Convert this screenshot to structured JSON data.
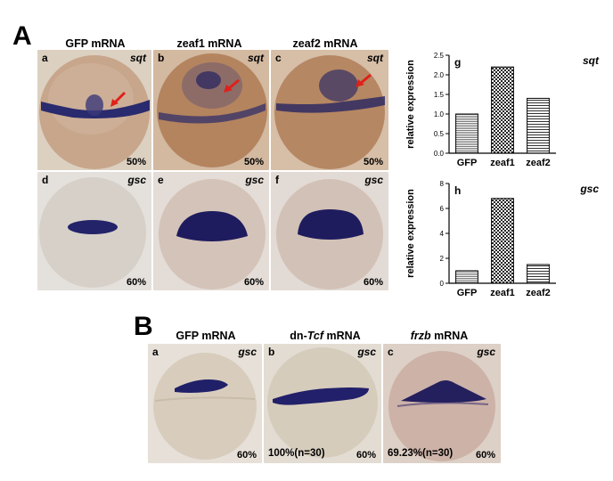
{
  "figure": {
    "panelA": {
      "letter": "A",
      "columns": [
        "GFP mRNA",
        "zeaf1 mRNA",
        "zeaf2 mRNA"
      ],
      "images": [
        {
          "label": "a",
          "gene": "sqt",
          "percent": "50%"
        },
        {
          "label": "b",
          "gene": "sqt",
          "percent": "50%"
        },
        {
          "label": "c",
          "gene": "sqt",
          "percent": "50%"
        },
        {
          "label": "d",
          "gene": "gsc",
          "percent": "60%"
        },
        {
          "label": "e",
          "gene": "gsc",
          "percent": "60%"
        },
        {
          "label": "f",
          "gene": "gsc",
          "percent": "60%"
        }
      ]
    },
    "panelB": {
      "letter": "B",
      "columns": [
        {
          "pre": "GFP mRNA",
          "italic": "",
          "post": ""
        },
        {
          "pre": "dn-",
          "italic": "Tcf",
          "post": " mRNA"
        },
        {
          "pre": "",
          "italic": "frzb",
          "post": " mRNA"
        }
      ],
      "images": [
        {
          "label": "a",
          "gene": "gsc",
          "percent": "60%",
          "note": ""
        },
        {
          "label": "b",
          "gene": "gsc",
          "percent": "60%",
          "note": "100%(n=30)"
        },
        {
          "label": "c",
          "gene": "gsc",
          "percent": "60%",
          "note": "69.23%(n=30)"
        }
      ]
    }
  },
  "chart_data": [
    {
      "type": "bar",
      "panel": "g",
      "gene": "sqt",
      "categories": [
        "GFP",
        "zeaf1",
        "zeaf2"
      ],
      "values": [
        1.0,
        2.2,
        1.4
      ],
      "ylabel": "relative expression",
      "ylim": [
        0,
        2.5
      ],
      "yticks": [
        "0.0",
        "0.5",
        "1.0",
        "1.5",
        "2.0",
        "2.5"
      ],
      "patterns": [
        "hlines-dense",
        "checker",
        "hlines"
      ]
    },
    {
      "type": "bar",
      "panel": "h",
      "gene": "gsc",
      "categories": [
        "GFP",
        "zeaf1",
        "zeaf2"
      ],
      "values": [
        1.0,
        6.8,
        1.5
      ],
      "ylabel": "relative expression",
      "ylim": [
        0,
        8
      ],
      "yticks": [
        "0",
        "2",
        "4",
        "6",
        "8"
      ],
      "patterns": [
        "hlines-dense",
        "checker",
        "hlines"
      ]
    }
  ]
}
